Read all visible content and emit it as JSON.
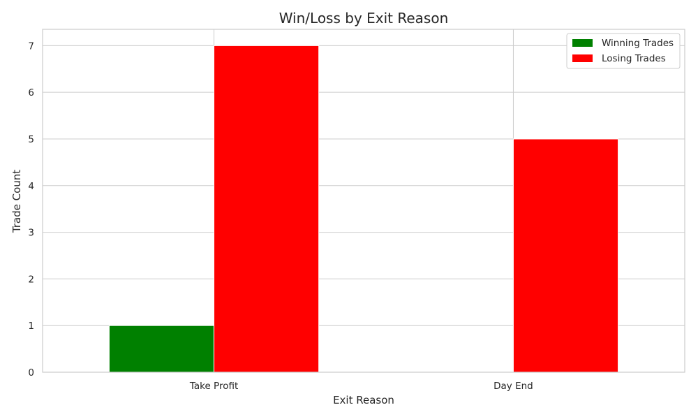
{
  "chart_data": {
    "type": "bar",
    "title": "Win/Loss by Exit Reason",
    "xlabel": "Exit Reason",
    "ylabel": "Trade Count",
    "categories": [
      "Take Profit",
      "Day End"
    ],
    "series": [
      {
        "name": "Winning Trades",
        "values": [
          1,
          0
        ],
        "color": "#008000"
      },
      {
        "name": "Losing Trades",
        "values": [
          7,
          5
        ],
        "color": "#ff0000"
      }
    ],
    "ylim": [
      0,
      7.35
    ],
    "yticks": [
      0,
      1,
      2,
      3,
      4,
      5,
      6,
      7
    ],
    "grid": true,
    "legend_position": "top-right"
  }
}
